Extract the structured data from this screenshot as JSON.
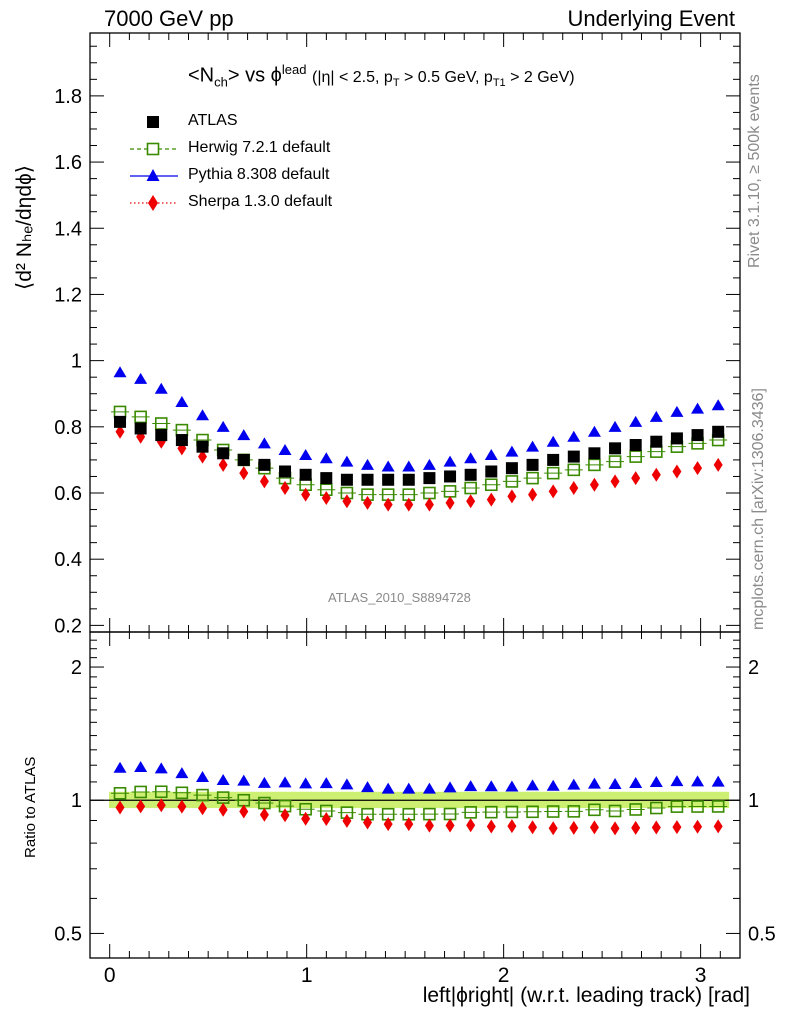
{
  "header": {
    "left": "7000 GeV pp",
    "right": "Underlying Event"
  },
  "side_labels": {
    "rivet": "Rivet 3.1.10, ≥ 500k events",
    "mcplots": "mcplots.cern.ch [arXiv:1306.3436]"
  },
  "watermark": "ATLAS_2010_S8894728",
  "plot_title": {
    "main": "<N",
    "main_sub": "ch",
    "vs": "> vs ϕ",
    "vs_sup": "lead",
    "cuts": "(|η| < 2.5, p",
    "cuts_sub1": "T",
    "cuts_mid": " > 0.5 GeV, p",
    "cuts_sub2": "T1",
    "cuts_end": " > 2 GeV)"
  },
  "axes": {
    "ylabel_main": "⟨d² Nₕₑ/dηdϕ⟩",
    "ylabel_ratio": "Ratio to ATLAS",
    "xlabel": "left|ϕright| (w.r.t. leading track) [rad]"
  },
  "legend": [
    {
      "label": "ATLAS",
      "marker": "square-filled",
      "color": "#000000",
      "line": "none"
    },
    {
      "label": "Herwig 7.2.1 default",
      "marker": "square-open",
      "color": "#3a8a00",
      "line": "dashed"
    },
    {
      "label": "Pythia 8.308 default",
      "marker": "triangle",
      "color": "#0000ee",
      "line": "solid"
    },
    {
      "label": "Sherpa 1.3.0 default",
      "marker": "diamond",
      "color": "#ee0000",
      "line": "dotted"
    }
  ],
  "chart_data": {
    "type": "scatter",
    "x": [
      0.0524,
      0.1571,
      0.2618,
      0.3665,
      0.4712,
      0.576,
      0.6807,
      0.7854,
      0.8901,
      0.9948,
      1.0996,
      1.2043,
      1.309,
      1.4137,
      1.5184,
      1.6232,
      1.7279,
      1.8326,
      1.9373,
      2.042,
      2.1468,
      2.2515,
      2.3562,
      2.4609,
      2.5656,
      2.6704,
      2.7751,
      2.8798,
      2.9845,
      3.0892
    ],
    "xlim": [
      -0.1,
      3.2
    ],
    "xticks": [
      0,
      1,
      2,
      3
    ],
    "main_ylim": [
      0.18,
      1.99
    ],
    "main_yticks": [
      0.2,
      0.4,
      0.6,
      0.8,
      1,
      1.2,
      1.4,
      1.6,
      1.8
    ],
    "ratio_ylim": [
      0.44,
      2.4
    ],
    "ratio_yticks": [
      0.5,
      1,
      2
    ],
    "band_color": "#c8ee64",
    "series": [
      {
        "name": "ATLAS",
        "values": [
          0.815,
          0.795,
          0.775,
          0.76,
          0.74,
          0.72,
          0.7,
          0.685,
          0.665,
          0.655,
          0.645,
          0.64,
          0.64,
          0.64,
          0.64,
          0.645,
          0.65,
          0.655,
          0.665,
          0.675,
          0.685,
          0.7,
          0.71,
          0.72,
          0.735,
          0.745,
          0.755,
          0.765,
          0.775,
          0.785
        ]
      },
      {
        "name": "Herwig 7.2.1 default",
        "values": [
          0.845,
          0.83,
          0.81,
          0.79,
          0.76,
          0.73,
          0.7,
          0.675,
          0.645,
          0.625,
          0.61,
          0.6,
          0.595,
          0.595,
          0.595,
          0.6,
          0.605,
          0.615,
          0.625,
          0.635,
          0.645,
          0.66,
          0.67,
          0.685,
          0.695,
          0.71,
          0.725,
          0.74,
          0.75,
          0.76
        ]
      },
      {
        "name": "Pythia 8.308 default",
        "values": [
          0.965,
          0.945,
          0.915,
          0.875,
          0.835,
          0.8,
          0.775,
          0.75,
          0.73,
          0.715,
          0.705,
          0.695,
          0.685,
          0.68,
          0.68,
          0.685,
          0.695,
          0.705,
          0.715,
          0.725,
          0.74,
          0.755,
          0.77,
          0.785,
          0.8,
          0.815,
          0.83,
          0.845,
          0.855,
          0.865
        ]
      },
      {
        "name": "Sherpa 1.3.0 default",
        "values": [
          0.785,
          0.77,
          0.755,
          0.735,
          0.71,
          0.685,
          0.66,
          0.635,
          0.615,
          0.595,
          0.585,
          0.575,
          0.57,
          0.565,
          0.565,
          0.565,
          0.57,
          0.575,
          0.58,
          0.59,
          0.595,
          0.605,
          0.615,
          0.625,
          0.635,
          0.645,
          0.655,
          0.665,
          0.675,
          0.685
        ]
      }
    ]
  }
}
